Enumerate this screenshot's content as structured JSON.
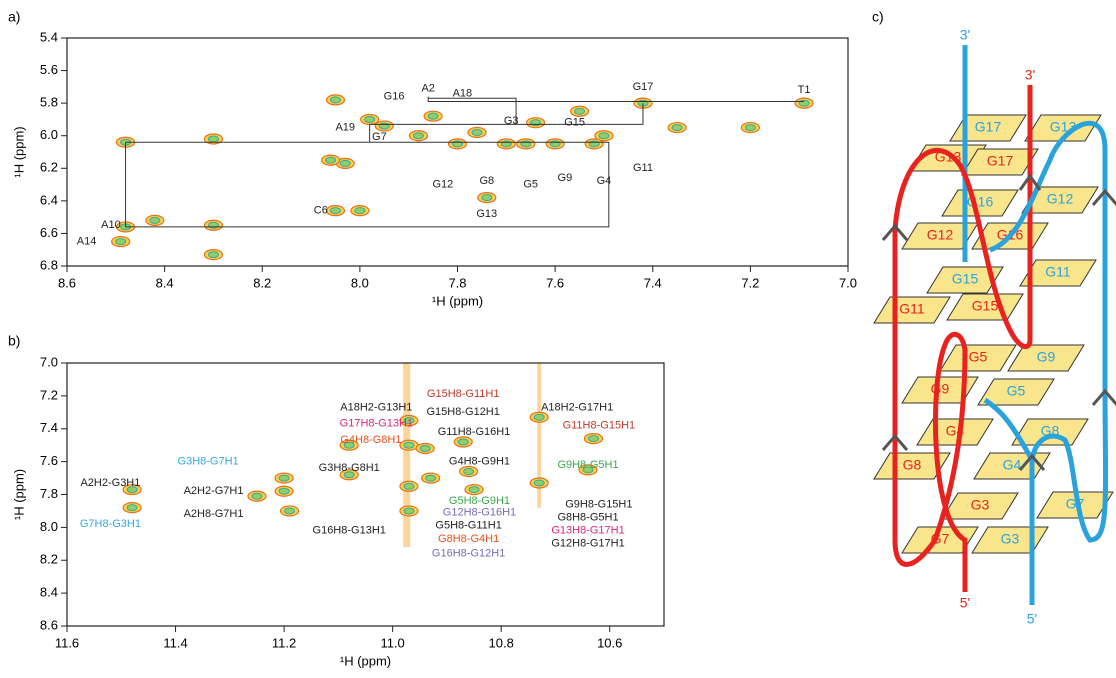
{
  "chart_data": [
    {
      "type": "contour",
      "panel": "a)",
      "xlabel": "¹H (ppm)",
      "ylabel": "¹H (ppm)",
      "xlim": [
        8.6,
        7.0
      ],
      "ylim": [
        5.4,
        6.8
      ],
      "xticks": [
        8.6,
        8.4,
        8.2,
        {
          "value": 8,
          "label": "8.0"
        },
        7.8,
        7.6,
        7.4,
        7.2,
        {
          "value": 7,
          "label": "7.0"
        }
      ],
      "yticks": [
        5.4,
        5.6,
        5.8,
        {
          "value": 6,
          "label": "6.0"
        },
        6.2,
        6.4,
        6.6,
        6.8
      ],
      "peaks": {
        "x": [
          8.48,
          8.49,
          8.05,
          8.0,
          8.03,
          8.06,
          7.74,
          7.95,
          7.85,
          7.76,
          7.66,
          7.6,
          7.5,
          7.52,
          7.42,
          7.09,
          7.7,
          7.8,
          7.88,
          8.3,
          8.48,
          8.05,
          7.35,
          7.2,
          8.3,
          8.42,
          8.3,
          7.98,
          7.55,
          7.64
        ],
        "y": [
          6.56,
          6.65,
          6.46,
          6.46,
          6.17,
          6.15,
          6.38,
          5.94,
          5.88,
          5.98,
          6.05,
          6.05,
          6.0,
          6.05,
          5.8,
          5.8,
          6.05,
          6.05,
          6.0,
          6.02,
          6.04,
          5.78,
          5.95,
          5.95,
          6.55,
          6.52,
          6.73,
          5.9,
          5.85,
          5.92
        ]
      },
      "walk": [
        {
          "x": [
            8.48,
            7.49,
            7.49,
            8.48,
            8.48
          ],
          "y": [
            6.04,
            6.04,
            6.56,
            6.56,
            6.04
          ]
        },
        {
          "x": [
            7.86,
            7.86,
            7.09
          ],
          "y": [
            5.76,
            5.79,
            5.79
          ]
        },
        {
          "x": [
            7.86,
            7.68,
            7.68
          ],
          "y": [
            5.77,
            5.77,
            5.93
          ]
        },
        {
          "x": [
            7.98,
            7.42,
            7.42
          ],
          "y": [
            5.93,
            5.93,
            5.8
          ]
        },
        {
          "x": [
            7.98,
            7.98
          ],
          "y": [
            5.93,
            6.04
          ]
        }
      ],
      "labels": [
        {
          "text": "T1",
          "x": 7.09,
          "y": 5.72,
          "color": "#222222"
        },
        {
          "text": "A2",
          "x": 7.86,
          "y": 5.71,
          "color": "#222222"
        },
        {
          "text": "G17",
          "x": 7.42,
          "y": 5.7,
          "color": "#222222"
        },
        {
          "text": "A18",
          "x": 7.79,
          "y": 5.74,
          "color": "#222222"
        },
        {
          "text": "G16",
          "x": 7.93,
          "y": 5.76,
          "color": "#222222"
        },
        {
          "text": "G3",
          "x": 7.69,
          "y": 5.91,
          "color": "#222222"
        },
        {
          "text": "G15",
          "x": 7.56,
          "y": 5.92,
          "color": "#222222"
        },
        {
          "text": "A19",
          "x": 8.03,
          "y": 5.95,
          "color": "#222222"
        },
        {
          "text": "G7",
          "x": 7.96,
          "y": 6.01,
          "color": "#222222"
        },
        {
          "text": "G12",
          "x": 7.83,
          "y": 6.3,
          "color": "#222222"
        },
        {
          "text": "G8",
          "x": 7.74,
          "y": 6.28,
          "color": "#222222"
        },
        {
          "text": "G5",
          "x": 7.65,
          "y": 6.3,
          "color": "#222222"
        },
        {
          "text": "G9",
          "x": 7.58,
          "y": 6.26,
          "color": "#222222"
        },
        {
          "text": "G4",
          "x": 7.5,
          "y": 6.28,
          "color": "#222222"
        },
        {
          "text": "G11",
          "x": 7.42,
          "y": 6.2,
          "color": "#222222"
        },
        {
          "text": "G13",
          "x": 7.74,
          "y": 6.48,
          "color": "#222222"
        },
        {
          "text": "C6",
          "x": 8.08,
          "y": 6.46,
          "color": "#222222"
        },
        {
          "text": "A10",
          "x": 8.51,
          "y": 6.55,
          "color": "#222222"
        },
        {
          "text": "A14",
          "x": 8.56,
          "y": 6.65,
          "color": "#222222"
        }
      ]
    },
    {
      "type": "contour",
      "panel": "b)",
      "xlabel": "¹H (ppm)",
      "ylabel": "¹H (ppm)",
      "xlim": [
        11.6,
        10.5
      ],
      "ylim": [
        7.0,
        8.6
      ],
      "xticks": [
        11.6,
        11.4,
        11.2,
        {
          "value": 11,
          "label": "11.0"
        },
        10.8,
        10.6
      ],
      "yticks": [
        {
          "value": 7,
          "label": "7.0"
        },
        7.2,
        7.4,
        7.6,
        7.8,
        {
          "value": 8,
          "label": "8.0"
        },
        8.2,
        8.4,
        8.6
      ],
      "peaks": {
        "x": [
          11.48,
          11.48,
          11.25,
          11.2,
          11.2,
          11.19,
          11.08,
          11.08,
          10.97,
          10.97,
          10.97,
          10.94,
          10.93,
          10.87,
          10.86,
          10.85,
          10.73,
          10.73,
          10.63,
          10.64,
          10.97
        ],
        "y": [
          7.77,
          7.88,
          7.81,
          7.7,
          7.78,
          7.9,
          7.5,
          7.68,
          7.35,
          7.5,
          7.75,
          7.52,
          7.7,
          7.48,
          7.66,
          7.77,
          7.33,
          7.73,
          7.46,
          7.65,
          7.9
        ]
      },
      "walk": [],
      "labels": [
        {
          "text": "A2H2-G3H1",
          "x": 11.52,
          "y": 7.73,
          "color": "#222222"
        },
        {
          "text": "G7H8-G3H1",
          "x": 11.52,
          "y": 7.98,
          "color": "#35a7e0"
        },
        {
          "text": "G3H8-G7H1",
          "x": 11.34,
          "y": 7.6,
          "color": "#35a7e0"
        },
        {
          "text": "A2H2-G7H1",
          "x": 11.33,
          "y": 7.78,
          "color": "#222222"
        },
        {
          "text": "A2H8-G7H1",
          "x": 11.33,
          "y": 7.92,
          "color": "#222222"
        },
        {
          "text": "G3H8-G8H1",
          "x": 11.08,
          "y": 7.64,
          "color": "#222222"
        },
        {
          "text": "A18H2-G13H1",
          "x": 11.03,
          "y": 7.27,
          "color": "#222222"
        },
        {
          "text": "G17H8-G13H1",
          "x": 11.03,
          "y": 7.37,
          "color": "#e2267c"
        },
        {
          "text": "G4H8-G8H1",
          "x": 11.04,
          "y": 7.47,
          "color": "#e8501c"
        },
        {
          "text": "G16H8-G13H1",
          "x": 11.08,
          "y": 8.02,
          "color": "#222222"
        },
        {
          "text": "G15H8-G11H1",
          "x": 10.87,
          "y": 7.19,
          "color": "#c0392b"
        },
        {
          "text": "G15H8-G12H1",
          "x": 10.87,
          "y": 7.3,
          "color": "#222222"
        },
        {
          "text": "G11H8-G16H1",
          "x": 10.85,
          "y": 7.42,
          "color": "#222222"
        },
        {
          "text": "G4H8-G9H1",
          "x": 10.84,
          "y": 7.6,
          "color": "#222222"
        },
        {
          "text": "G5H8-G9H1",
          "x": 10.84,
          "y": 7.84,
          "color": "#3aa84a"
        },
        {
          "text": "G12H8-G16H1",
          "x": 10.84,
          "y": 7.91,
          "color": "#7a6bb5"
        },
        {
          "text": "G5H8-G11H1",
          "x": 10.86,
          "y": 7.99,
          "color": "#222222"
        },
        {
          "text": "G8H8-G4H1",
          "x": 10.86,
          "y": 8.07,
          "color": "#e8501c"
        },
        {
          "text": "G16H8-G12H1",
          "x": 10.86,
          "y": 8.16,
          "color": "#7a6bb5"
        },
        {
          "text": "A18H2-G17H1",
          "x": 10.66,
          "y": 7.27,
          "color": "#222222"
        },
        {
          "text": "G11H8-G15H1",
          "x": 10.62,
          "y": 7.38,
          "color": "#c0392b"
        },
        {
          "text": "G9H8-G5H1",
          "x": 10.64,
          "y": 7.62,
          "color": "#3aa84a"
        },
        {
          "text": "G9H8-G15H1",
          "x": 10.62,
          "y": 7.86,
          "color": "#222222"
        },
        {
          "text": "G8H8-G5H1",
          "x": 10.64,
          "y": 7.94,
          "color": "#222222"
        },
        {
          "text": "G13H8-G17H1",
          "x": 10.64,
          "y": 8.02,
          "color": "#e2267c"
        },
        {
          "text": "G12H8-G17H1",
          "x": 10.64,
          "y": 8.1,
          "color": "#222222"
        }
      ]
    }
  ],
  "panel_c": {
    "panel": "c)",
    "ends": [
      "3'",
      "3'",
      "5'",
      "5'"
    ],
    "labels": [
      "G17",
      "G13",
      "G13",
      "G17",
      "G16",
      "G12",
      "G12",
      "G16",
      "G15",
      "G11",
      "G11",
      "G15",
      "G5",
      "G9",
      "G9",
      "G5",
      "G4",
      "G8",
      "G8",
      "G4",
      "G3",
      "G7",
      "G7",
      "G3"
    ]
  }
}
